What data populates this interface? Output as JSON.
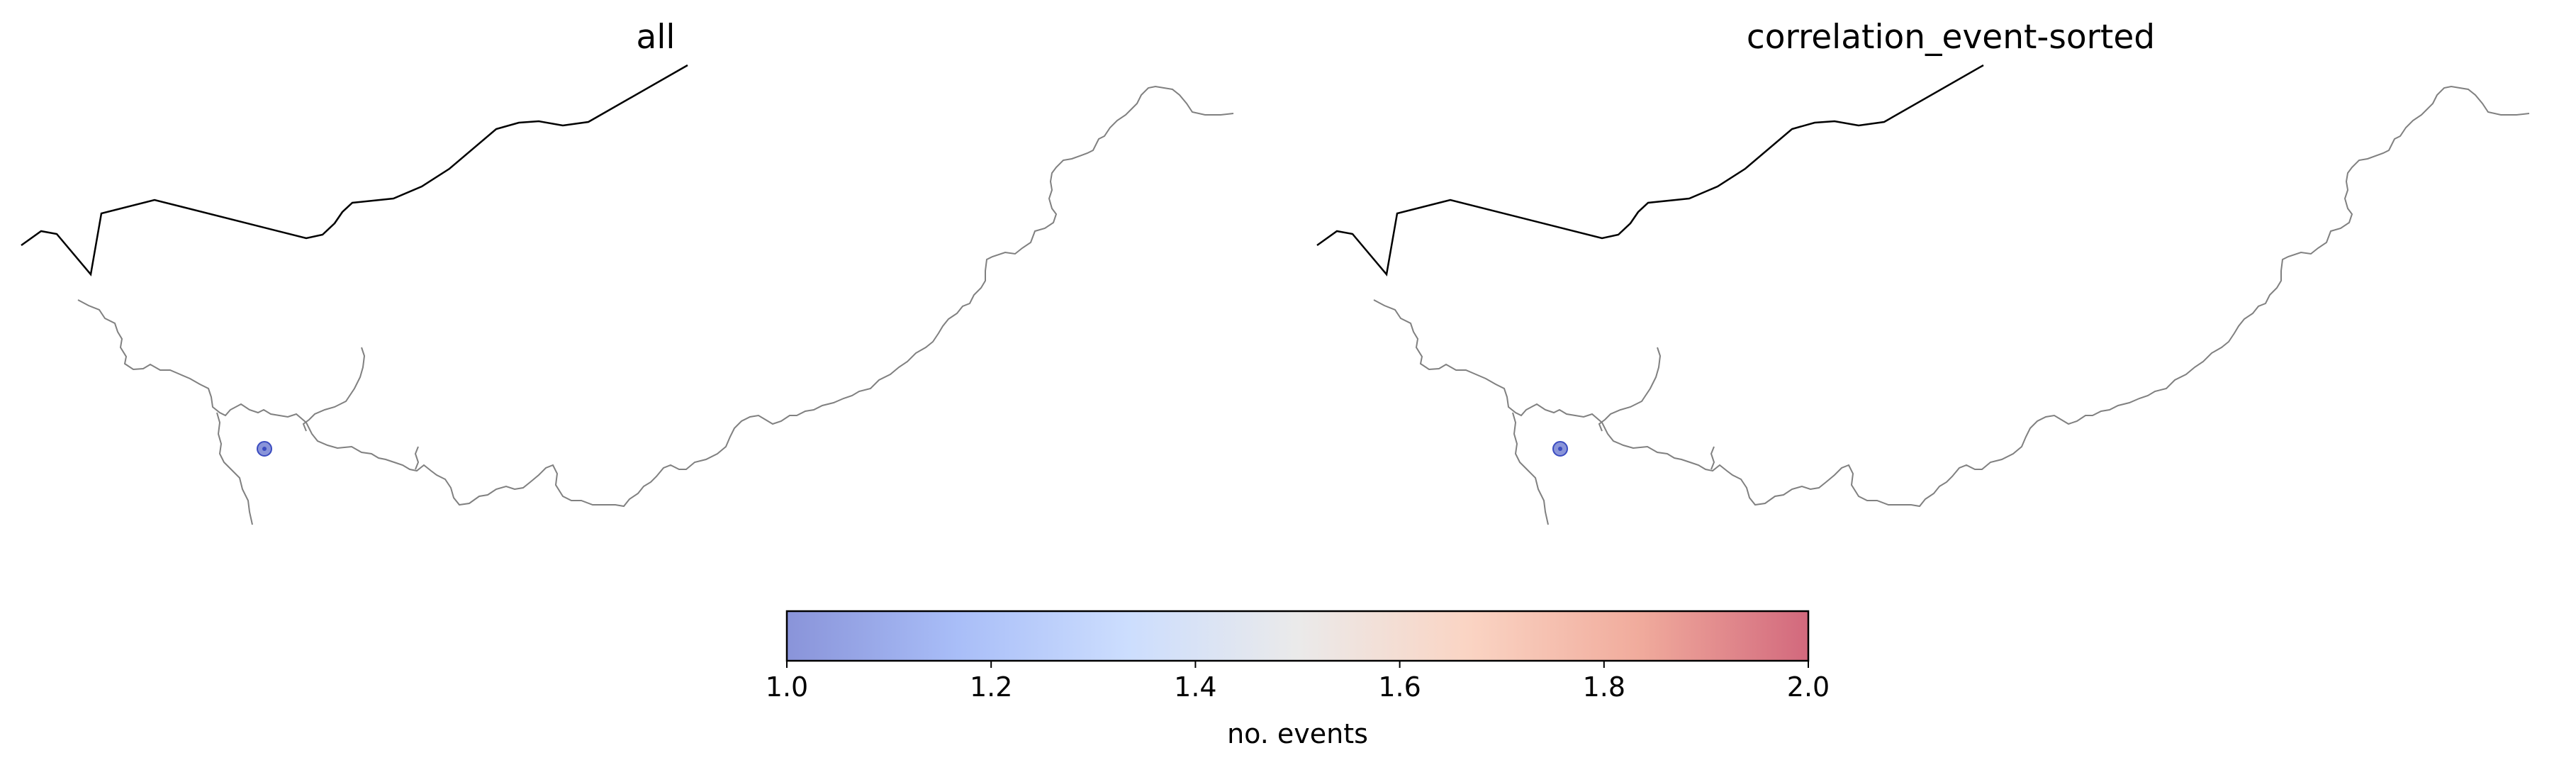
{
  "chart_data": {
    "type": "scatter",
    "panels": [
      {
        "title": "all",
        "points": [
          {
            "count": 1
          }
        ]
      },
      {
        "title": "correlation_event-sorted",
        "points": [
          {
            "count": 1
          }
        ]
      }
    ],
    "colorbar": {
      "label": "no. events",
      "min": 1.0,
      "max": 2.0,
      "ticks": [
        "1.0",
        "1.2",
        "1.4",
        "1.6",
        "1.8",
        "2.0"
      ],
      "colormap": "coolwarm",
      "colors": [
        "#3b4cc0",
        "#6f92f3",
        "#aac7fd",
        "#dddcdc",
        "#f7b89c",
        "#e7745b",
        "#b40426"
      ],
      "alpha": 0.6
    },
    "colors": {
      "border": "#000000",
      "river": "#808080",
      "background": "#ffffff"
    }
  }
}
